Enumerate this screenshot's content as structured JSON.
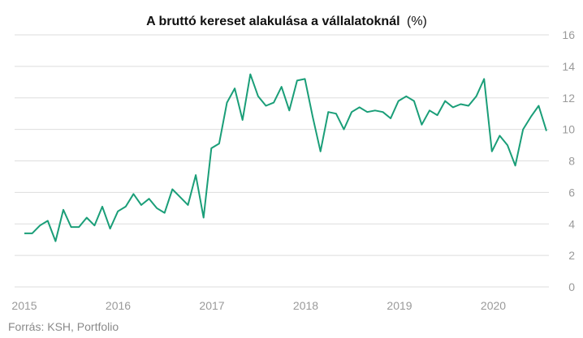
{
  "chart_data": {
    "type": "line",
    "title": "A bruttó kereset alakulása a vállalatoknál",
    "title_unit": "(%)",
    "source": "Forrás: KSH, Portfolio",
    "ylim": [
      0,
      16
    ],
    "y_ticks": [
      "0",
      "2",
      "4",
      "6",
      "8",
      "10",
      "12",
      "14",
      "16"
    ],
    "x_ticks": [
      "2015",
      "2016",
      "2017",
      "2018",
      "2019",
      "2020"
    ],
    "grid": true,
    "y_axis_side": "right",
    "line_color": "#1a9e78",
    "grid_color": "#dddddd",
    "series": [
      {
        "values": [
          3.4,
          3.4,
          3.9,
          4.2,
          2.9,
          4.9,
          3.8,
          3.8,
          4.4,
          3.9,
          5.1,
          3.7,
          4.8,
          5.1,
          5.9,
          5.2,
          5.6,
          5.0,
          4.7,
          6.2,
          5.7,
          5.2,
          7.1,
          4.4,
          8.8,
          9.1,
          11.7,
          12.6,
          10.6,
          13.5,
          12.1,
          11.5,
          11.7,
          12.7,
          11.2,
          13.1,
          13.2,
          10.8,
          8.6,
          11.1,
          11.0,
          10.0,
          11.1,
          11.4,
          11.1,
          11.2,
          11.1,
          10.7,
          11.8,
          12.1,
          11.8,
          10.3,
          11.2,
          10.9,
          11.8,
          11.4,
          11.6,
          11.5,
          12.1,
          13.2,
          8.6,
          9.6,
          9.0,
          7.7,
          10.0,
          10.8,
          11.5,
          9.9
        ]
      }
    ]
  }
}
